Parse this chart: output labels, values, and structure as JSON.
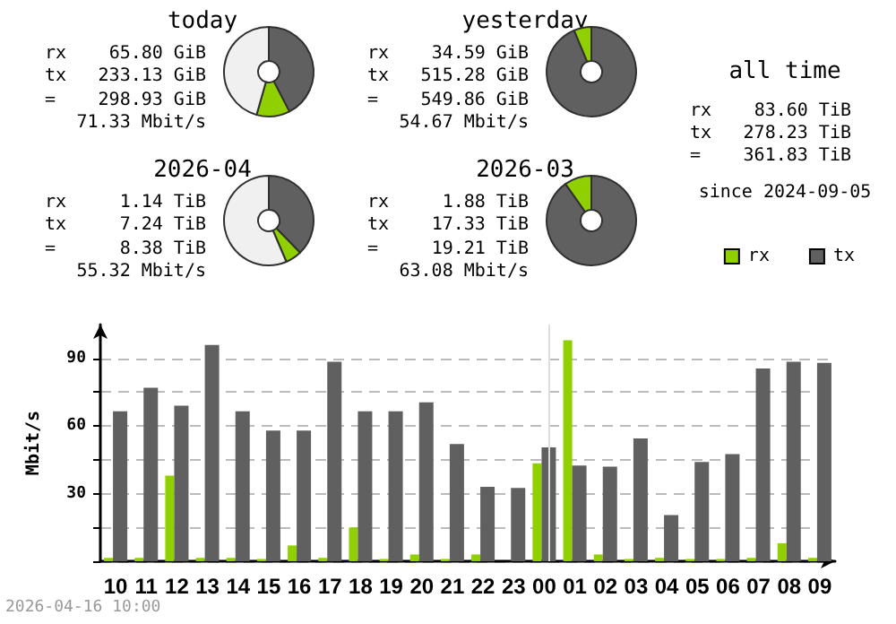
{
  "chart_data": [
    {
      "type": "donut",
      "title": "today",
      "categories": [
        null,
        null,
        null
      ],
      "values": [
        42.4,
        12.0,
        45.6
      ],
      "colors": [
        "#606060",
        "#90d000",
        "#f0f0f0"
      ],
      "annotations": [
        "rx",
        "65.80 GiB",
        "tx",
        "233.13 GiB",
        "=",
        "298.93 GiB",
        "71.33 Mbit/s"
      ]
    },
    {
      "type": "donut",
      "title": "yesterday",
      "categories": [
        null,
        null
      ],
      "values": [
        93.7,
        6.3
      ],
      "colors": [
        "#606060",
        "#90d000"
      ],
      "annotations": [
        "rx",
        "34.59 GiB",
        "tx",
        "515.28 GiB",
        "=",
        "549.86 GiB",
        "54.67 Mbit/s"
      ]
    },
    {
      "type": "other",
      "title": "all time",
      "annotations": [
        "rx",
        "83.60 TiB",
        "tx",
        "278.23 TiB",
        "=",
        "361.83 TiB",
        "since 2024-09-05"
      ]
    },
    {
      "type": "donut",
      "title": "2026-04",
      "categories": [
        null,
        null,
        null
      ],
      "values": [
        37.7,
        5.9,
        56.4
      ],
      "colors": [
        "#606060",
        "#90d000",
        "#f0f0f0"
      ],
      "annotations": [
        "rx",
        "1.14 TiB",
        "tx",
        "7.24 TiB",
        "=",
        "8.38 TiB",
        "55.32 Mbit/s"
      ]
    },
    {
      "type": "donut",
      "title": "2026-03",
      "categories": [
        null,
        null
      ],
      "values": [
        90.2,
        9.8
      ],
      "colors": [
        "#606060",
        "#90d000"
      ],
      "annotations": [
        "rx",
        "1.88 TiB",
        "tx",
        "17.33 TiB",
        "=",
        "19.21 TiB",
        "63.08 Mbit/s"
      ]
    },
    {
      "type": "bar",
      "ylabel": "Mbit/s",
      "categories": [
        "10",
        "11",
        "12",
        "13",
        "14",
        "15",
        "16",
        "17",
        "18",
        "19",
        "20",
        "21",
        "22",
        "23",
        "00",
        "01",
        "02",
        "03",
        "04",
        "05",
        "06",
        "07",
        "08",
        "09"
      ],
      "series": [
        {
          "name": "rx",
          "color": "#90d000",
          "values": [
            1.5,
            1.5,
            38,
            1.5,
            1.5,
            1,
            7,
            1.5,
            15,
            1,
            3,
            1,
            3,
            0,
            43.5,
            98,
            3,
            1,
            1.5,
            1,
            1,
            1.5,
            8,
            1.5
          ]
        },
        {
          "name": "tx",
          "color": "#606060",
          "values": [
            66.5,
            77,
            69,
            96,
            66.5,
            58,
            58,
            88.5,
            66.5,
            66.5,
            70.5,
            52,
            33,
            32.5,
            50.5,
            42.5,
            42,
            54.5,
            20.5,
            44,
            47.5,
            85.5,
            88.5,
            88
          ]
        }
      ],
      "ylim": [
        0,
        105
      ],
      "yticks": [
        {
          "value": 0,
          "label": null
        },
        {
          "value": 15,
          "label": null
        },
        30,
        {
          "value": 45,
          "label": null
        },
        60,
        {
          "value": 75,
          "label": null
        },
        90
      ],
      "grid": "y",
      "legend": "top right",
      "ref_lines": [
        {
          "axis": "x",
          "value": "00",
          "color": "#dddddd"
        }
      ],
      "annotations": [
        "2026-04-16 10:00"
      ]
    }
  ]
}
